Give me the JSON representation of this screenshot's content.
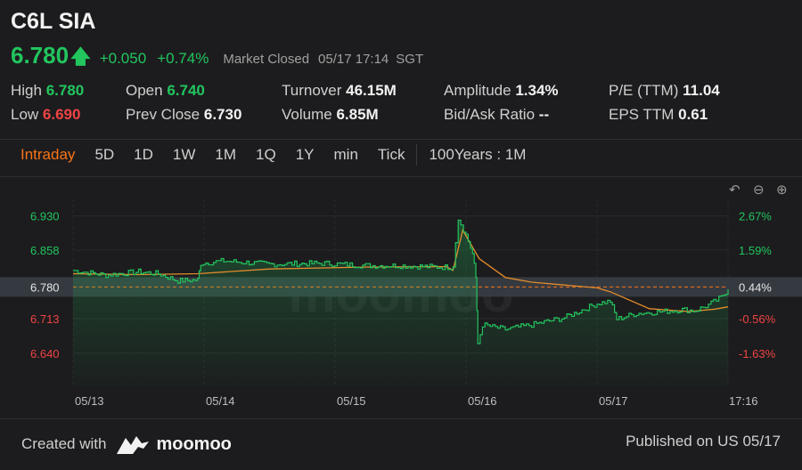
{
  "header": {
    "ticker": "C6L SIA",
    "price": "6.780",
    "change": "+0.050",
    "change_pct": "+0.74%",
    "market_status": "Market Closed",
    "datetime": "05/17 17:14",
    "timezone": "SGT"
  },
  "stats": {
    "high_label": "High",
    "high": "6.780",
    "low_label": "Low",
    "low": "6.690",
    "open_label": "Open",
    "open": "6.740",
    "prev_close_label": "Prev Close",
    "prev_close": "6.730",
    "turnover_label": "Turnover",
    "turnover": "46.15M",
    "volume_label": "Volume",
    "volume": "6.85M",
    "amplitude_label": "Amplitude",
    "amplitude": "1.34%",
    "bid_ask_label": "Bid/Ask Ratio",
    "bid_ask": "--",
    "pe_label": "P/E (TTM)",
    "pe": "11.04",
    "eps_label": "EPS TTM",
    "eps": "0.61"
  },
  "tabs": [
    "Intraday",
    "5D",
    "1D",
    "1W",
    "1M",
    "1Q",
    "1Y",
    "min",
    "Tick"
  ],
  "active_tab": "Intraday",
  "range_tab": "100Years : 1M",
  "watermark": "moomoo",
  "colors": {
    "up": "#22c55e",
    "down": "#ef4444",
    "accent": "#f97316",
    "avg": "#e38b2c"
  },
  "chart_data": {
    "type": "line",
    "title": "",
    "x_ticks": [
      "05/13",
      "05/14",
      "05/15",
      "05/16",
      "05/17",
      "17:16"
    ],
    "y_ticks": [
      6.93,
      6.858,
      6.78,
      6.713,
      6.64
    ],
    "y_ticks_label": [
      "6.930",
      "6.858",
      "6.780",
      "6.713",
      "6.640"
    ],
    "pct_ticks": [
      "2.67%",
      "1.59%",
      "0.44%",
      "-0.56%",
      "-1.63%"
    ],
    "ylim": [
      6.57,
      6.965
    ],
    "prev_close": 6.73,
    "last_price": 6.78,
    "series": [
      {
        "type": "price",
        "points": [
          [
            0.0,
            6.815
          ],
          [
            0.05,
            6.805
          ],
          [
            0.1,
            6.812
          ],
          [
            0.13,
            6.808
          ],
          [
            0.16,
            6.793
          ],
          [
            0.19,
            6.795
          ],
          [
            0.195,
            6.83
          ],
          [
            0.23,
            6.835
          ],
          [
            0.3,
            6.828
          ],
          [
            0.38,
            6.83
          ],
          [
            0.45,
            6.825
          ],
          [
            0.5,
            6.825
          ],
          [
            0.56,
            6.822
          ],
          [
            0.58,
            6.822
          ],
          [
            0.588,
            6.925
          ],
          [
            0.6,
            6.89
          ],
          [
            0.61,
            6.85
          ],
          [
            0.615,
            6.8
          ],
          [
            0.618,
            6.66
          ],
          [
            0.625,
            6.7
          ],
          [
            0.66,
            6.69
          ],
          [
            0.7,
            6.7
          ],
          [
            0.75,
            6.715
          ],
          [
            0.8,
            6.745
          ],
          [
            0.82,
            6.75
          ],
          [
            0.83,
            6.712
          ],
          [
            0.86,
            6.724
          ],
          [
            0.9,
            6.728
          ],
          [
            0.93,
            6.732
          ],
          [
            0.95,
            6.73
          ],
          [
            0.97,
            6.742
          ],
          [
            0.99,
            6.758
          ],
          [
            1.0,
            6.775
          ]
        ]
      },
      {
        "type": "average",
        "points": [
          [
            0.0,
            6.808
          ],
          [
            0.1,
            6.806
          ],
          [
            0.19,
            6.808
          ],
          [
            0.3,
            6.818
          ],
          [
            0.45,
            6.822
          ],
          [
            0.57,
            6.823
          ],
          [
            0.58,
            6.815
          ],
          [
            0.595,
            6.9
          ],
          [
            0.62,
            6.84
          ],
          [
            0.66,
            6.8
          ],
          [
            0.7,
            6.79
          ],
          [
            0.8,
            6.778
          ],
          [
            0.82,
            6.77
          ],
          [
            0.88,
            6.734
          ],
          [
            0.94,
            6.728
          ],
          [
            0.98,
            6.733
          ],
          [
            1.0,
            6.738
          ]
        ]
      }
    ]
  },
  "footer": {
    "created_with": "Created with",
    "brand": "moomoo",
    "published": "Published on US 05/17"
  }
}
